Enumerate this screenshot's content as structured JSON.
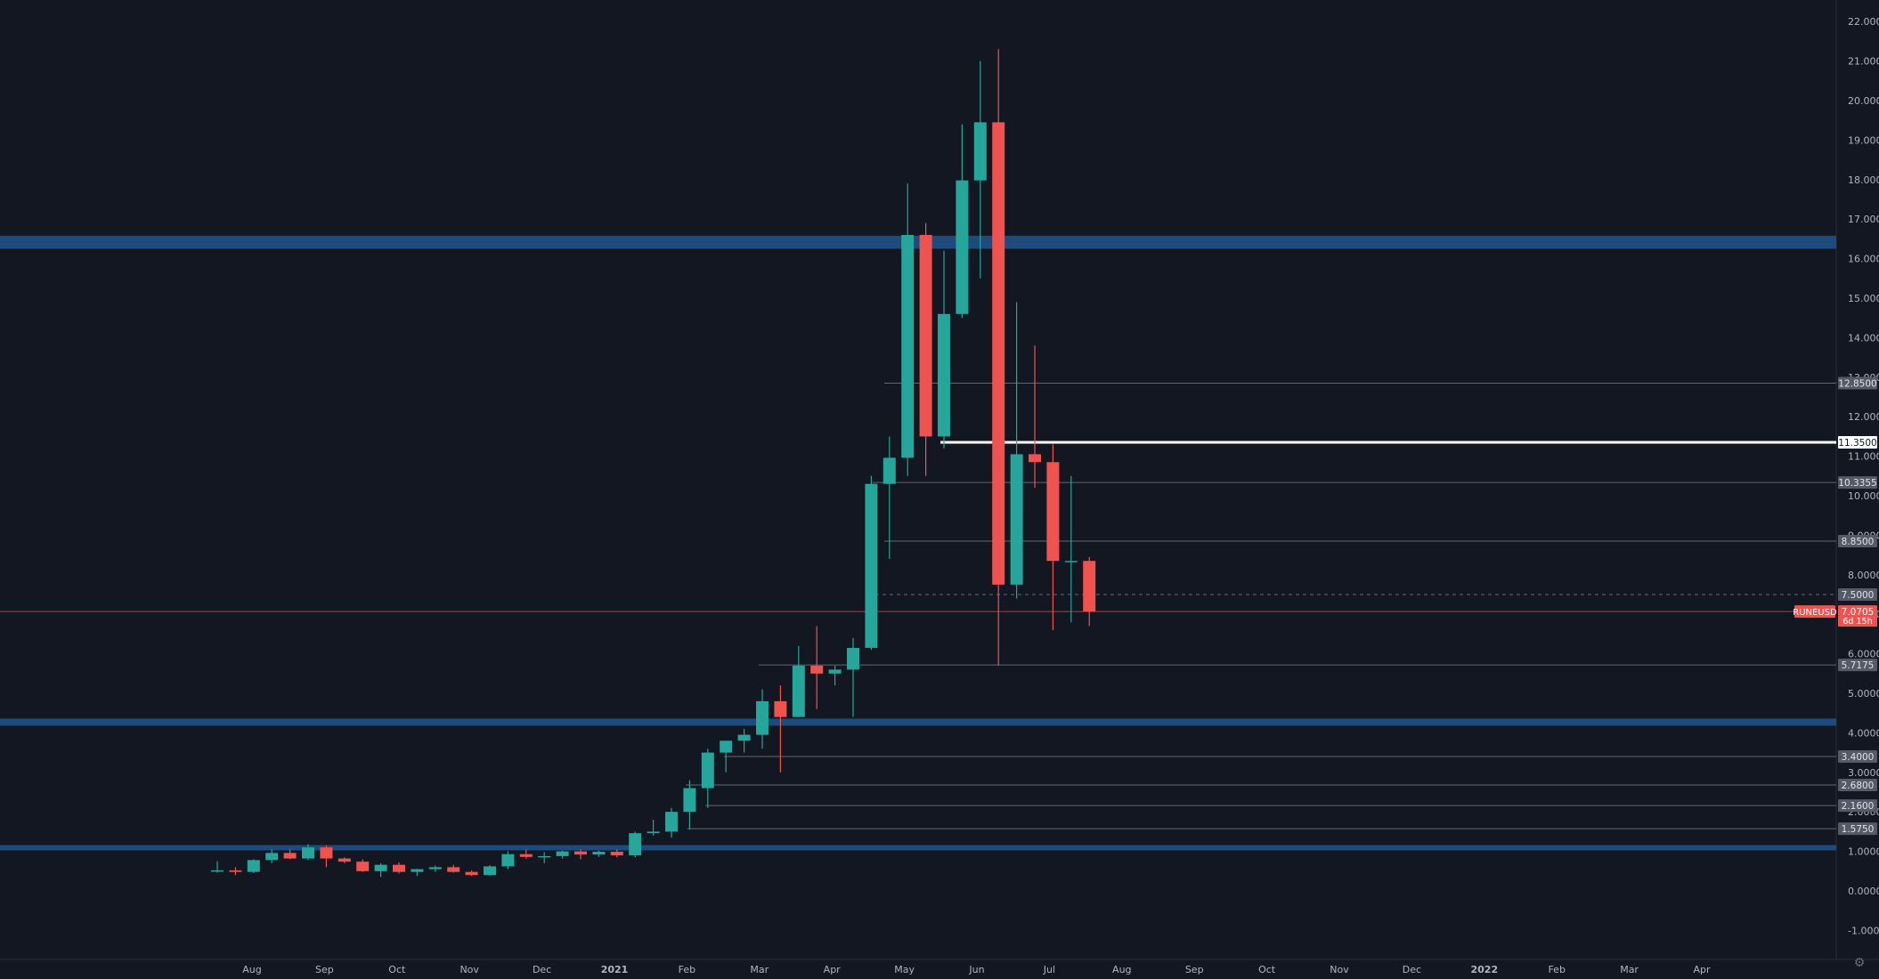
{
  "chart_data": {
    "type": "candlestick",
    "symbol": "RUNEUSD",
    "last_price": "7.0705",
    "countdown": "6d 15h",
    "y_axis": {
      "ticks": [
        "-1.0000",
        "0.0000",
        "1.0000",
        "2.0000",
        "3.0000",
        "4.0000",
        "5.0000",
        "6.0000",
        "7.0000",
        "8.0000",
        "9.0000",
        "10.0000",
        "11.0000",
        "12.0000",
        "13.0000",
        "14.0000",
        "15.0000",
        "16.0000",
        "17.0000",
        "18.0000",
        "19.0000",
        "20.0000",
        "21.0000",
        "22.0000"
      ],
      "ylim": [
        -1.8,
        22.5
      ]
    },
    "x_axis": {
      "ticks": [
        {
          "label": "Aug",
          "bold": false
        },
        {
          "label": "Sep",
          "bold": false
        },
        {
          "label": "Oct",
          "bold": false
        },
        {
          "label": "Nov",
          "bold": false
        },
        {
          "label": "Dec",
          "bold": false
        },
        {
          "label": "2021",
          "bold": true
        },
        {
          "label": "Feb",
          "bold": false
        },
        {
          "label": "Mar",
          "bold": false
        },
        {
          "label": "Apr",
          "bold": false
        },
        {
          "label": "May",
          "bold": false
        },
        {
          "label": "Jun",
          "bold": false
        },
        {
          "label": "Jul",
          "bold": false
        },
        {
          "label": "Aug",
          "bold": false
        },
        {
          "label": "Sep",
          "bold": false
        },
        {
          "label": "Oct",
          "bold": false
        },
        {
          "label": "Nov",
          "bold": false
        },
        {
          "label": "Dec",
          "bold": false
        },
        {
          "label": "2022",
          "bold": true
        },
        {
          "label": "Feb",
          "bold": false
        },
        {
          "label": "Mar",
          "bold": false
        },
        {
          "label": "Apr",
          "bold": false
        }
      ]
    },
    "candles": [
      {
        "o": 0.5,
        "h": 0.75,
        "l": 0.46,
        "c": 0.52
      },
      {
        "o": 0.52,
        "h": 0.6,
        "l": 0.4,
        "c": 0.48
      },
      {
        "o": 0.48,
        "h": 0.8,
        "l": 0.45,
        "c": 0.78
      },
      {
        "o": 0.78,
        "h": 1.05,
        "l": 0.7,
        "c": 0.96
      },
      {
        "o": 0.96,
        "h": 1.05,
        "l": 0.8,
        "c": 0.82
      },
      {
        "o": 0.82,
        "h": 1.18,
        "l": 0.78,
        "c": 1.1
      },
      {
        "o": 1.1,
        "h": 1.15,
        "l": 0.6,
        "c": 0.82
      },
      {
        "o": 0.82,
        "h": 0.85,
        "l": 0.7,
        "c": 0.74
      },
      {
        "o": 0.74,
        "h": 0.8,
        "l": 0.48,
        "c": 0.5
      },
      {
        "o": 0.5,
        "h": 0.7,
        "l": 0.35,
        "c": 0.66
      },
      {
        "o": 0.66,
        "h": 0.72,
        "l": 0.44,
        "c": 0.48
      },
      {
        "o": 0.48,
        "h": 0.56,
        "l": 0.38,
        "c": 0.55
      },
      {
        "o": 0.55,
        "h": 0.64,
        "l": 0.48,
        "c": 0.6
      },
      {
        "o": 0.6,
        "h": 0.66,
        "l": 0.46,
        "c": 0.48
      },
      {
        "o": 0.48,
        "h": 0.52,
        "l": 0.38,
        "c": 0.4
      },
      {
        "o": 0.4,
        "h": 0.65,
        "l": 0.38,
        "c": 0.62
      },
      {
        "o": 0.62,
        "h": 1.0,
        "l": 0.55,
        "c": 0.93
      },
      {
        "o": 0.93,
        "h": 1.05,
        "l": 0.82,
        "c": 0.86
      },
      {
        "o": 0.86,
        "h": 0.98,
        "l": 0.7,
        "c": 0.88
      },
      {
        "o": 0.88,
        "h": 1.02,
        "l": 0.82,
        "c": 1.0
      },
      {
        "o": 1.0,
        "h": 1.05,
        "l": 0.8,
        "c": 0.92
      },
      {
        "o": 0.92,
        "h": 1.02,
        "l": 0.86,
        "c": 0.99
      },
      {
        "o": 0.99,
        "h": 1.05,
        "l": 0.85,
        "c": 0.9
      },
      {
        "o": 0.9,
        "h": 1.5,
        "l": 0.85,
        "c": 1.46
      },
      {
        "o": 1.46,
        "h": 1.8,
        "l": 1.4,
        "c": 1.5
      },
      {
        "o": 1.5,
        "h": 2.1,
        "l": 1.35,
        "c": 2.0
      },
      {
        "o": 2.0,
        "h": 2.8,
        "l": 1.55,
        "c": 2.6
      },
      {
        "o": 2.6,
        "h": 3.6,
        "l": 2.1,
        "c": 3.5
      },
      {
        "o": 3.5,
        "h": 3.8,
        "l": 3.0,
        "c": 3.8
      },
      {
        "o": 3.8,
        "h": 4.1,
        "l": 3.5,
        "c": 3.95
      },
      {
        "o": 3.95,
        "h": 5.1,
        "l": 3.6,
        "c": 4.8
      },
      {
        "o": 4.8,
        "h": 5.2,
        "l": 3.0,
        "c": 4.4
      },
      {
        "o": 4.4,
        "h": 6.2,
        "l": 4.4,
        "c": 5.7
      },
      {
        "o": 5.7,
        "h": 6.7,
        "l": 4.6,
        "c": 5.5
      },
      {
        "o": 5.5,
        "h": 5.7,
        "l": 5.2,
        "c": 5.6
      },
      {
        "o": 5.6,
        "h": 6.4,
        "l": 4.4,
        "c": 6.15
      },
      {
        "o": 6.15,
        "h": 10.5,
        "l": 6.1,
        "c": 10.3
      },
      {
        "o": 10.3,
        "h": 11.5,
        "l": 8.4,
        "c": 10.96
      },
      {
        "o": 10.96,
        "h": 17.9,
        "l": 10.5,
        "c": 16.6
      },
      {
        "o": 16.6,
        "h": 16.9,
        "l": 10.5,
        "c": 11.5
      },
      {
        "o": 11.5,
        "h": 16.2,
        "l": 11.2,
        "c": 14.6
      },
      {
        "o": 14.6,
        "h": 19.4,
        "l": 14.5,
        "c": 17.98
      },
      {
        "o": 17.98,
        "h": 21.0,
        "l": 15.5,
        "c": 19.45
      },
      {
        "o": 19.45,
        "h": 21.3,
        "l": 5.7,
        "c": 7.75
      },
      {
        "o": 7.75,
        "h": 14.9,
        "l": 7.4,
        "c": 11.05
      },
      {
        "o": 11.05,
        "h": 13.8,
        "l": 10.2,
        "c": 10.85
      },
      {
        "o": 10.85,
        "h": 11.3,
        "l": 6.6,
        "c": 8.35
      },
      {
        "o": 8.35,
        "h": 10.5,
        "l": 6.8,
        "c": 8.35
      },
      {
        "o": 8.35,
        "h": 8.45,
        "l": 6.7,
        "c": 7.07
      }
    ],
    "horizontal_levels": [
      "12.8500",
      "11.3500",
      "10.3355",
      "8.8500",
      "7.5000",
      "5.7175",
      "3.4000",
      "2.6800",
      "2.1600",
      "1.5750"
    ],
    "zones": [
      {
        "low": 16.25,
        "high": 16.58
      },
      {
        "low": 4.18,
        "high": 4.36
      },
      {
        "low": 1.08,
        "high": 1.16
      }
    ],
    "colors": {
      "background": "#131722",
      "up": "#26a69a",
      "down": "#ef5350",
      "zone": "#1f4e82",
      "level_line": "#787b86",
      "key_line": "#ffffff",
      "axis_text": "#b2b5be",
      "label_box": "#555a66"
    },
    "icons": {
      "settings": "gear-icon"
    }
  }
}
